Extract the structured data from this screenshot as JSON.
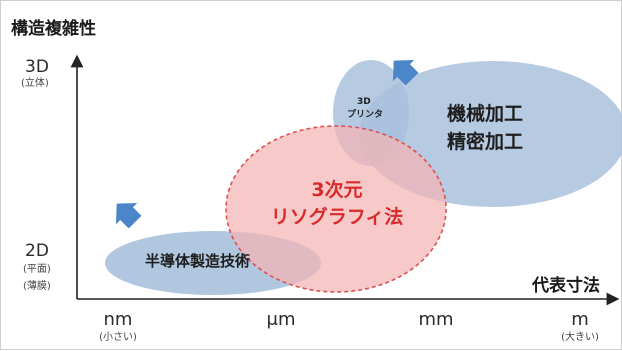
{
  "y_axis": {
    "title": "構造複雑性",
    "top_label": "3D",
    "top_sub": "(立体)",
    "bottom_label": "2D",
    "bottom_sub_1": "(平面)",
    "bottom_sub_2": "(薄膜)"
  },
  "x_axis": {
    "title": "代表寸法",
    "ticks": [
      {
        "label": "nm",
        "sub": "(小さい)"
      },
      {
        "label": "μm",
        "sub": ""
      },
      {
        "label": "mm",
        "sub": ""
      },
      {
        "label": "m",
        "sub": "(大きい)"
      }
    ]
  },
  "regions": {
    "semiconductor": "半導体製造技術",
    "printer_line1": "3D",
    "printer_line2": "プリンタ",
    "machining_line1": "機械加工",
    "machining_line2": "精密加工",
    "litho_line1": "3次元",
    "litho_line2": "リソグラフィ法"
  },
  "colors": {
    "blue_fill": "#a9c1dd",
    "red_fill": "#f4b4b4",
    "red_stroke": "#e05050",
    "arrow_blue": "#4a86c8",
    "axis": "#222222"
  }
}
